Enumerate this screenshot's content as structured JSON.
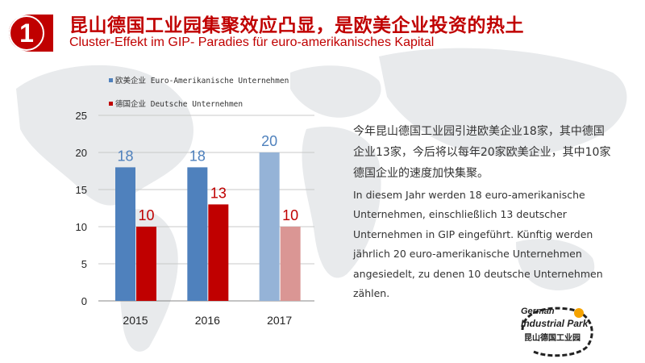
{
  "header": {
    "badge_number": "1",
    "title_cn": "昆山德国工业园集聚效应凸显，是欧美企业投资的热土",
    "title_de": "Cluster-Effekt im GIP- Paradies für euro-amerikanisches Kapital"
  },
  "colors": {
    "accent_red": "#c00000",
    "euro_american": "#4f81bd",
    "german": "#c00000",
    "euro_american_light": "#95b3d7",
    "german_light": "#da9694"
  },
  "chart_data": {
    "type": "bar",
    "categories": [
      "2015",
      "2016",
      "2017"
    ],
    "series": [
      {
        "name": "欧美企业 Euro-Amerikanische Unternehmen",
        "values": [
          18,
          18,
          20
        ]
      },
      {
        "name": "德国企业 Deutsche Unternehmen",
        "values": [
          10,
          13,
          10
        ]
      }
    ],
    "ylim": [
      0,
      25
    ],
    "yticks": [
      "0",
      "5",
      "10",
      "15",
      "20",
      "25"
    ],
    "grid": true,
    "legend_position": "top-left",
    "xlabel": "",
    "ylabel": ""
  },
  "description": {
    "cn": "今年昆山德国工业园引进欧美企业18家，其中德国企业13家，今后将以每年20家欧美企业，其中10家德国企业的速度加快集聚。",
    "de": "In diesem Jahr werden 18 euro-amerikanische Unternehmen, einschließlich 13 deutscher Unternehmen in GIP eingeführt. Künftig werden jährlich 20 euro-amerikanische Unternehmen angesiedelt, zu denen 10 deutsche Unternehmen zählen."
  },
  "logo": {
    "line1": "German",
    "line2": "Industrial Park",
    "line3": "昆山德国工业园"
  }
}
